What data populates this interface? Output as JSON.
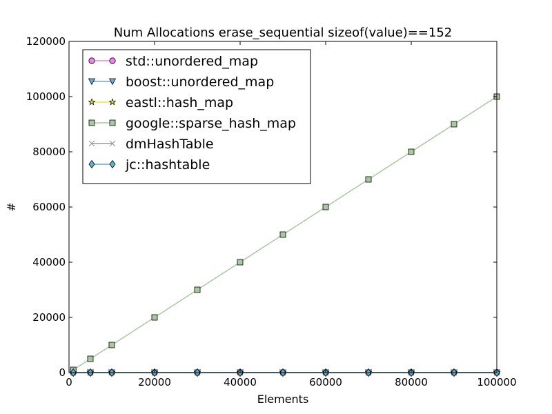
{
  "chart_data": {
    "type": "line",
    "title": "Num Allocations erase_sequential sizeof(value)==152",
    "xlabel": "Elements",
    "ylabel": "#",
    "xlim": [
      0,
      100000
    ],
    "ylim": [
      0,
      120000
    ],
    "x_ticks": [
      "0",
      "20000",
      "40000",
      "60000",
      "80000",
      "100000"
    ],
    "y_ticks": [
      "0",
      "20000",
      "40000",
      "60000",
      "80000",
      "100000",
      "120000"
    ],
    "legend_position": "top-left",
    "grid": false,
    "x": [
      1000,
      5000,
      10000,
      20000,
      30000,
      40000,
      50000,
      60000,
      70000,
      80000,
      90000,
      100000
    ],
    "series": [
      {
        "name": "std::unordered_map",
        "marker": "circle",
        "color": "#ee82ee",
        "values": [
          0,
          0,
          0,
          0,
          0,
          0,
          0,
          0,
          0,
          0,
          0,
          0
        ]
      },
      {
        "name": "boost::unordered_map",
        "marker": "triangle-down",
        "color": "#6fa8dc",
        "values": [
          0,
          0,
          0,
          0,
          0,
          0,
          0,
          0,
          0,
          0,
          0,
          0
        ]
      },
      {
        "name": "eastl::hash_map",
        "marker": "star",
        "color": "#e8e840",
        "values": [
          0,
          0,
          0,
          0,
          0,
          0,
          0,
          0,
          0,
          0,
          0,
          0
        ]
      },
      {
        "name": "google::sparse_hash_map",
        "marker": "square",
        "color": "#a8c8a0",
        "values": [
          1000,
          5000,
          10000,
          20000,
          30000,
          40000,
          50000,
          60000,
          70000,
          80000,
          90000,
          100000
        ]
      },
      {
        "name": "dmHashTable",
        "marker": "x",
        "color": "#999999",
        "values": [
          0,
          0,
          0,
          0,
          0,
          0,
          0,
          0,
          0,
          0,
          0,
          0
        ]
      },
      {
        "name": "jc::hashtable",
        "marker": "diamond",
        "color": "#5cb0d8",
        "values": [
          0,
          0,
          0,
          0,
          0,
          0,
          0,
          0,
          0,
          0,
          0,
          0
        ]
      }
    ]
  }
}
